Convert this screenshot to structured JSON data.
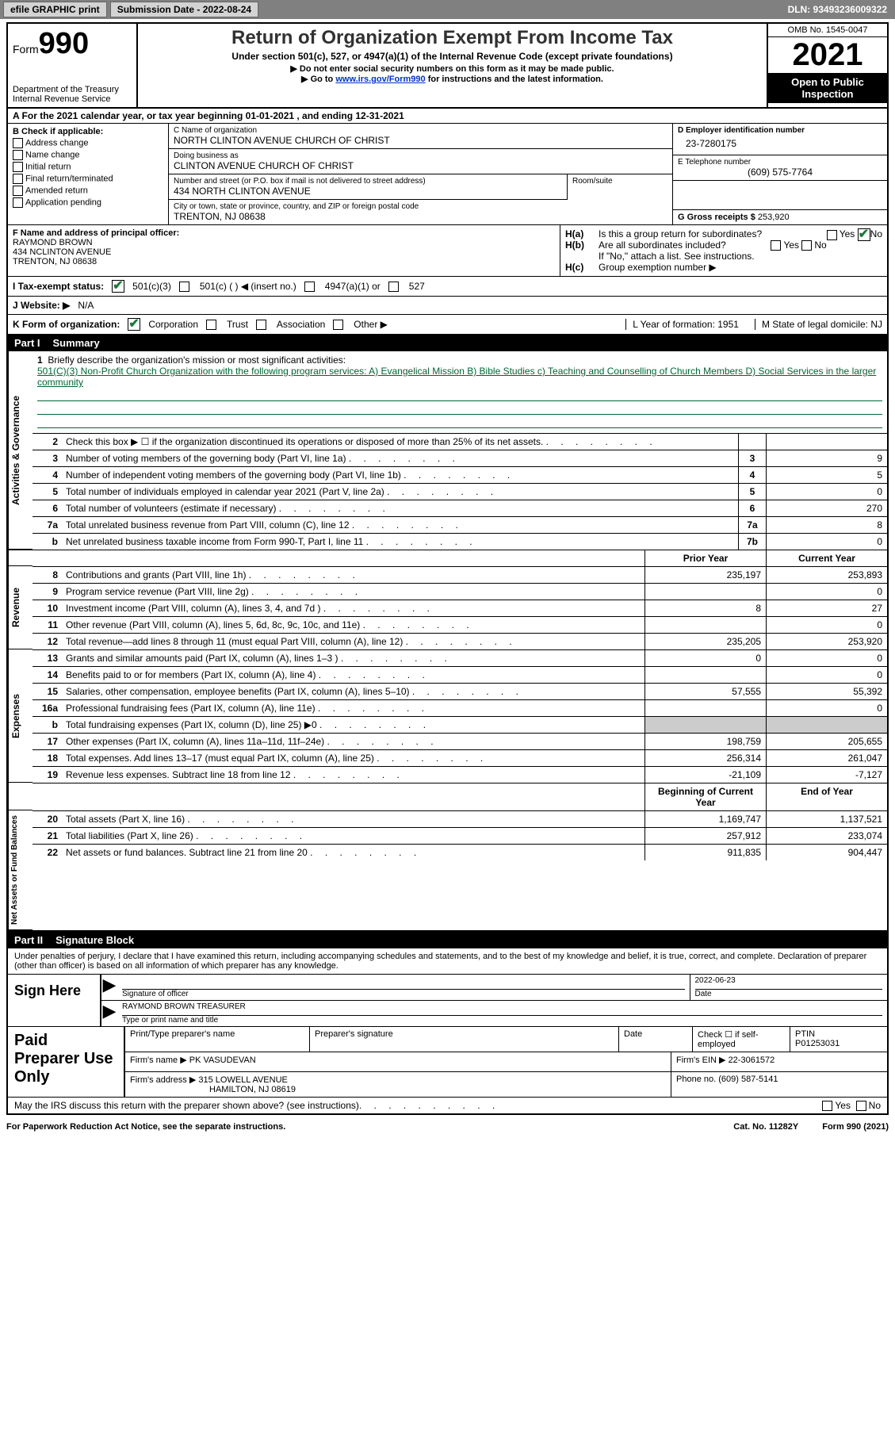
{
  "topbar": {
    "efile": "efile GRAPHIC print",
    "submission": "Submission Date - 2022-08-24",
    "dln": "DLN: 93493236009322"
  },
  "header": {
    "form_label": "Form",
    "form_num": "990",
    "dept": "Department of the Treasury",
    "irs": "Internal Revenue Service",
    "title": "Return of Organization Exempt From Income Tax",
    "subtitle": "Under section 501(c), 527, or 4947(a)(1) of the Internal Revenue Code (except private foundations)",
    "note1": "▶ Do not enter social security numbers on this form as it may be made public.",
    "note2_pre": "▶ Go to ",
    "note2_link": "www.irs.gov/Form990",
    "note2_post": " for instructions and the latest information.",
    "omb": "OMB No. 1545-0047",
    "year": "2021",
    "open": "Open to Public Inspection"
  },
  "row_a": "A  For the 2021 calendar year, or tax year beginning 01-01-2021    , and ending 12-31-2021",
  "box_b": {
    "title": "B Check if applicable:",
    "items": [
      "Address change",
      "Name change",
      "Initial return",
      "Final return/terminated",
      "Amended return",
      "Application pending"
    ]
  },
  "box_c": {
    "name_label": "C Name of organization",
    "name": "NORTH CLINTON AVENUE CHURCH OF CHRIST",
    "dba_label": "Doing business as",
    "dba": "CLINTON AVENUE CHURCH OF CHRIST",
    "street_label": "Number and street (or P.O. box if mail is not delivered to street address)",
    "street": "434 NORTH CLINTON AVENUE",
    "room_label": "Room/suite",
    "city_label": "City or town, state or province, country, and ZIP or foreign postal code",
    "city": "TRENTON, NJ  08638"
  },
  "box_d": {
    "ein_label": "D Employer identification number",
    "ein": "23-7280175",
    "phone_label": "E Telephone number",
    "phone": "(609) 575-7764",
    "gross_label": "G Gross receipts $",
    "gross": "253,920"
  },
  "box_f": {
    "label": "F  Name and address of principal officer:",
    "name": "RAYMOND BROWN",
    "street": "434 NCLINTON AVENUE",
    "city": "TRENTON, NJ  08638"
  },
  "box_h": {
    "ha": "Is this a group return for subordinates?",
    "hb": "Are all subordinates included?",
    "hb_note": "If \"No,\" attach a list. See instructions.",
    "hc": "Group exemption number ▶"
  },
  "tax_status": {
    "label": "I   Tax-exempt status:",
    "o1": "501(c)(3)",
    "o2": "501(c) (  ) ◀ (insert no.)",
    "o3": "4947(a)(1) or",
    "o4": "527"
  },
  "website": {
    "label": "J   Website: ▶",
    "value": "N/A"
  },
  "korg": {
    "label": "K Form of organization:",
    "o1": "Corporation",
    "o2": "Trust",
    "o3": "Association",
    "o4": "Other ▶",
    "l": "L Year of formation: 1951",
    "m": "M State of legal domicile: NJ"
  },
  "part1": {
    "num": "Part I",
    "title": "Summary"
  },
  "mission": {
    "num": "1",
    "label": "Briefly describe the organization's mission or most significant activities:",
    "text": "501(C)(3) Non-Profit Church Organization with the following program services: A) Evangelical Mission B) Bible Studies c) Teaching and Counselling of Church Members D) Social Services in the larger community"
  },
  "lines_ag": [
    {
      "n": "2",
      "t": "Check this box ▶ ☐  if the organization discontinued its operations or disposed of more than 25% of its net assets.",
      "b": "",
      "v": ""
    },
    {
      "n": "3",
      "t": "Number of voting members of the governing body (Part VI, line 1a)",
      "b": "3",
      "v": "9"
    },
    {
      "n": "4",
      "t": "Number of independent voting members of the governing body (Part VI, line 1b)",
      "b": "4",
      "v": "5"
    },
    {
      "n": "5",
      "t": "Total number of individuals employed in calendar year 2021 (Part V, line 2a)",
      "b": "5",
      "v": "0"
    },
    {
      "n": "6",
      "t": "Total number of volunteers (estimate if necessary)",
      "b": "6",
      "v": "270"
    },
    {
      "n": "7a",
      "t": "Total unrelated business revenue from Part VIII, column (C), line 12",
      "b": "7a",
      "v": "8"
    },
    {
      "n": "b",
      "t": "Net unrelated business taxable income from Form 990-T, Part I, line 11",
      "b": "7b",
      "v": "0"
    }
  ],
  "col_headers": {
    "prior": "Prior Year",
    "current": "Current Year",
    "boy": "Beginning of Current Year",
    "eoy": "End of Year"
  },
  "lines_rev": [
    {
      "n": "8",
      "t": "Contributions and grants (Part VIII, line 1h)",
      "p": "235,197",
      "c": "253,893"
    },
    {
      "n": "9",
      "t": "Program service revenue (Part VIII, line 2g)",
      "p": "",
      "c": "0"
    },
    {
      "n": "10",
      "t": "Investment income (Part VIII, column (A), lines 3, 4, and 7d )",
      "p": "8",
      "c": "27"
    },
    {
      "n": "11",
      "t": "Other revenue (Part VIII, column (A), lines 5, 6d, 8c, 9c, 10c, and 11e)",
      "p": "",
      "c": "0"
    },
    {
      "n": "12",
      "t": "Total revenue—add lines 8 through 11 (must equal Part VIII, column (A), line 12)",
      "p": "235,205",
      "c": "253,920"
    }
  ],
  "lines_exp": [
    {
      "n": "13",
      "t": "Grants and similar amounts paid (Part IX, column (A), lines 1–3 )",
      "p": "0",
      "c": "0"
    },
    {
      "n": "14",
      "t": "Benefits paid to or for members (Part IX, column (A), line 4)",
      "p": "",
      "c": "0"
    },
    {
      "n": "15",
      "t": "Salaries, other compensation, employee benefits (Part IX, column (A), lines 5–10)",
      "p": "57,555",
      "c": "55,392"
    },
    {
      "n": "16a",
      "t": "Professional fundraising fees (Part IX, column (A), line 11e)",
      "p": "",
      "c": "0"
    },
    {
      "n": "b",
      "t": "Total fundraising expenses (Part IX, column (D), line 25) ▶0",
      "p": "grey",
      "c": "grey"
    },
    {
      "n": "17",
      "t": "Other expenses (Part IX, column (A), lines 11a–11d, 11f–24e)",
      "p": "198,759",
      "c": "205,655"
    },
    {
      "n": "18",
      "t": "Total expenses. Add lines 13–17 (must equal Part IX, column (A), line 25)",
      "p": "256,314",
      "c": "261,047"
    },
    {
      "n": "19",
      "t": "Revenue less expenses. Subtract line 18 from line 12",
      "p": "-21,109",
      "c": "-7,127"
    }
  ],
  "lines_na": [
    {
      "n": "20",
      "t": "Total assets (Part X, line 16)",
      "p": "1,169,747",
      "c": "1,137,521"
    },
    {
      "n": "21",
      "t": "Total liabilities (Part X, line 26)",
      "p": "257,912",
      "c": "233,074"
    },
    {
      "n": "22",
      "t": "Net assets or fund balances. Subtract line 21 from line 20",
      "p": "911,835",
      "c": "904,447"
    }
  ],
  "part2": {
    "num": "Part II",
    "title": "Signature Block"
  },
  "sig": {
    "decl": "Under penalties of perjury, I declare that I have examined this return, including accompanying schedules and statements, and to the best of my knowledge and belief, it is true, correct, and complete. Declaration of preparer (other than officer) is based on all information of which preparer has any knowledge.",
    "sign_here": "Sign Here",
    "sig_officer": "Signature of officer",
    "date": "Date",
    "date_val": "2022-06-23",
    "name_title": "RAYMOND BROWN  TREASURER",
    "name_label": "Type or print name and title"
  },
  "paid": {
    "label": "Paid Preparer Use Only",
    "h1": "Print/Type preparer's name",
    "h2": "Preparer's signature",
    "h3": "Date",
    "h4": "Check ☐ if self-employed",
    "h5": "PTIN",
    "ptin": "P01253031",
    "firm_name_l": "Firm's name    ▶",
    "firm_name": "PK VASUDEVAN",
    "firm_ein_l": "Firm's EIN ▶",
    "firm_ein": "22-3061572",
    "firm_addr_l": "Firm's address ▶",
    "firm_addr1": "315 LOWELL AVENUE",
    "firm_addr2": "HAMILTON, NJ  08619",
    "phone_l": "Phone no.",
    "phone": "(609) 587-5141"
  },
  "discuss": "May the IRS discuss this return with the preparer shown above? (see instructions)",
  "footer": {
    "left": "For Paperwork Reduction Act Notice, see the separate instructions.",
    "mid": "Cat. No. 11282Y",
    "right": "Form 990 (2021)"
  }
}
